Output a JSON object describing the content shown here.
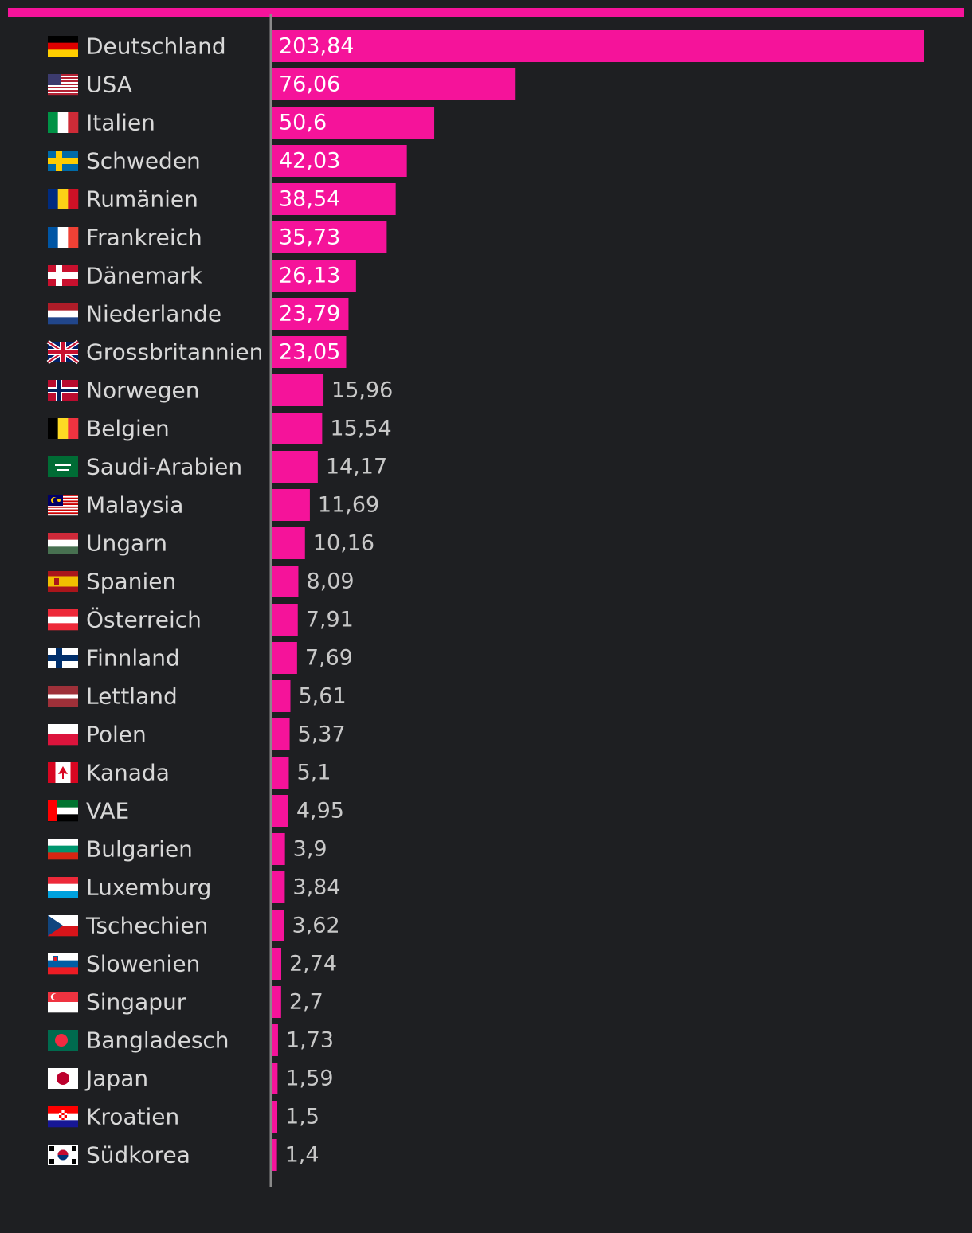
{
  "colors": {
    "background": "#1e1f22",
    "bar": "#f5139a",
    "accent_bar": "#f5139a",
    "axis": "#8a8a8a",
    "label_text": "#d8d8d8",
    "value_text_inside": "#ffffff",
    "value_text_outside": "#c8c8c8"
  },
  "chart_data": {
    "type": "bar",
    "orientation": "horizontal",
    "title": "",
    "xlabel": "",
    "ylabel": "",
    "xlim": [
      0,
      210
    ],
    "grid": false,
    "legend": "none",
    "categories": [
      "Deutschland",
      "USA",
      "Italien",
      "Schweden",
      "Rumänien",
      "Frankreich",
      "Dänemark",
      "Niederlande",
      "Grossbritannien",
      "Norwegen",
      "Belgien",
      "Saudi-Arabien",
      "Malaysia",
      "Ungarn",
      "Spanien",
      "Österreich",
      "Finnland",
      "Lettland",
      "Polen",
      "Kanada",
      "VAE",
      "Bulgarien",
      "Luxemburg",
      "Tschechien",
      "Slowenien",
      "Singapur",
      "Bangladesch",
      "Japan",
      "Kroatien",
      "Südkorea"
    ],
    "values": [
      203.84,
      76.06,
      50.6,
      42.03,
      38.54,
      35.73,
      26.13,
      23.79,
      23.05,
      15.96,
      15.54,
      14.17,
      11.69,
      10.16,
      8.09,
      7.91,
      7.69,
      5.61,
      5.37,
      5.1,
      4.95,
      3.9,
      3.84,
      3.62,
      2.74,
      2.7,
      1.73,
      1.59,
      1.5,
      1.4
    ],
    "value_labels": [
      "203,84",
      "76,06",
      "50,6",
      "42,03",
      "38,54",
      "35,73",
      "26,13",
      "23,79",
      "23,05",
      "15,96",
      "15,54",
      "14,17",
      "11,69",
      "10,16",
      "8,09",
      "7,91",
      "7,69",
      "5,61",
      "5,37",
      "5,1",
      "4,95",
      "3,9",
      "3,84",
      "3,62",
      "2,74",
      "2,7",
      "1,73",
      "1,59",
      "1,5",
      "1,4"
    ],
    "flag_icons": [
      "flag-germany-icon",
      "flag-usa-icon",
      "flag-italy-icon",
      "flag-sweden-icon",
      "flag-romania-icon",
      "flag-france-icon",
      "flag-denmark-icon",
      "flag-netherlands-icon",
      "flag-uk-icon",
      "flag-norway-icon",
      "flag-belgium-icon",
      "flag-saudi-arabia-icon",
      "flag-malaysia-icon",
      "flag-hungary-icon",
      "flag-spain-icon",
      "flag-austria-icon",
      "flag-finland-icon",
      "flag-latvia-icon",
      "flag-poland-icon",
      "flag-canada-icon",
      "flag-uae-icon",
      "flag-bulgaria-icon",
      "flag-luxembourg-icon",
      "flag-czechia-icon",
      "flag-slovenia-icon",
      "flag-singapore-icon",
      "flag-bangladesh-icon",
      "flag-japan-icon",
      "flag-croatia-icon",
      "flag-south-korea-icon"
    ]
  }
}
